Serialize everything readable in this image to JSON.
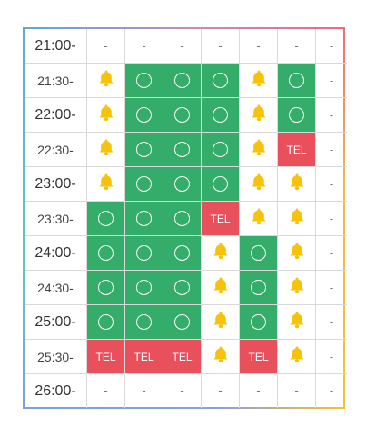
{
  "colors": {
    "open": "#34ad6a",
    "tel": "#e8505b",
    "bell": "#f6c20a"
  },
  "legend_icons": {
    "o": "circle-icon",
    "b": "bell-icon",
    "t": "tel-badge",
    "x": "dash"
  },
  "symbols": {
    "dash": "-",
    "tel": "TEL"
  },
  "rows": [
    {
      "time": "21:00-",
      "cells": [
        "x",
        "x",
        "x",
        "x",
        "x",
        "x",
        "x"
      ]
    },
    {
      "time": "21:30-",
      "cells": [
        "b",
        "o",
        "o",
        "o",
        "b",
        "o",
        "x"
      ]
    },
    {
      "time": "22:00-",
      "cells": [
        "b",
        "o",
        "o",
        "o",
        "b",
        "o",
        "x"
      ]
    },
    {
      "time": "22:30-",
      "cells": [
        "b",
        "o",
        "o",
        "o",
        "b",
        "t",
        "x"
      ]
    },
    {
      "time": "23:00-",
      "cells": [
        "b",
        "o",
        "o",
        "o",
        "b",
        "b",
        "x"
      ]
    },
    {
      "time": "23:30-",
      "cells": [
        "o",
        "o",
        "o",
        "t",
        "b",
        "b",
        "x"
      ]
    },
    {
      "time": "24:00-",
      "cells": [
        "o",
        "o",
        "o",
        "b",
        "o",
        "b",
        "x"
      ]
    },
    {
      "time": "24:30-",
      "cells": [
        "o",
        "o",
        "o",
        "b",
        "o",
        "b",
        "x"
      ]
    },
    {
      "time": "25:00-",
      "cells": [
        "o",
        "o",
        "o",
        "b",
        "o",
        "b",
        "x"
      ]
    },
    {
      "time": "25:30-",
      "cells": [
        "t",
        "t",
        "t",
        "b",
        "t",
        "b",
        "x"
      ]
    },
    {
      "time": "26:00-",
      "cells": [
        "x",
        "x",
        "x",
        "x",
        "x",
        "x",
        "x"
      ]
    }
  ]
}
